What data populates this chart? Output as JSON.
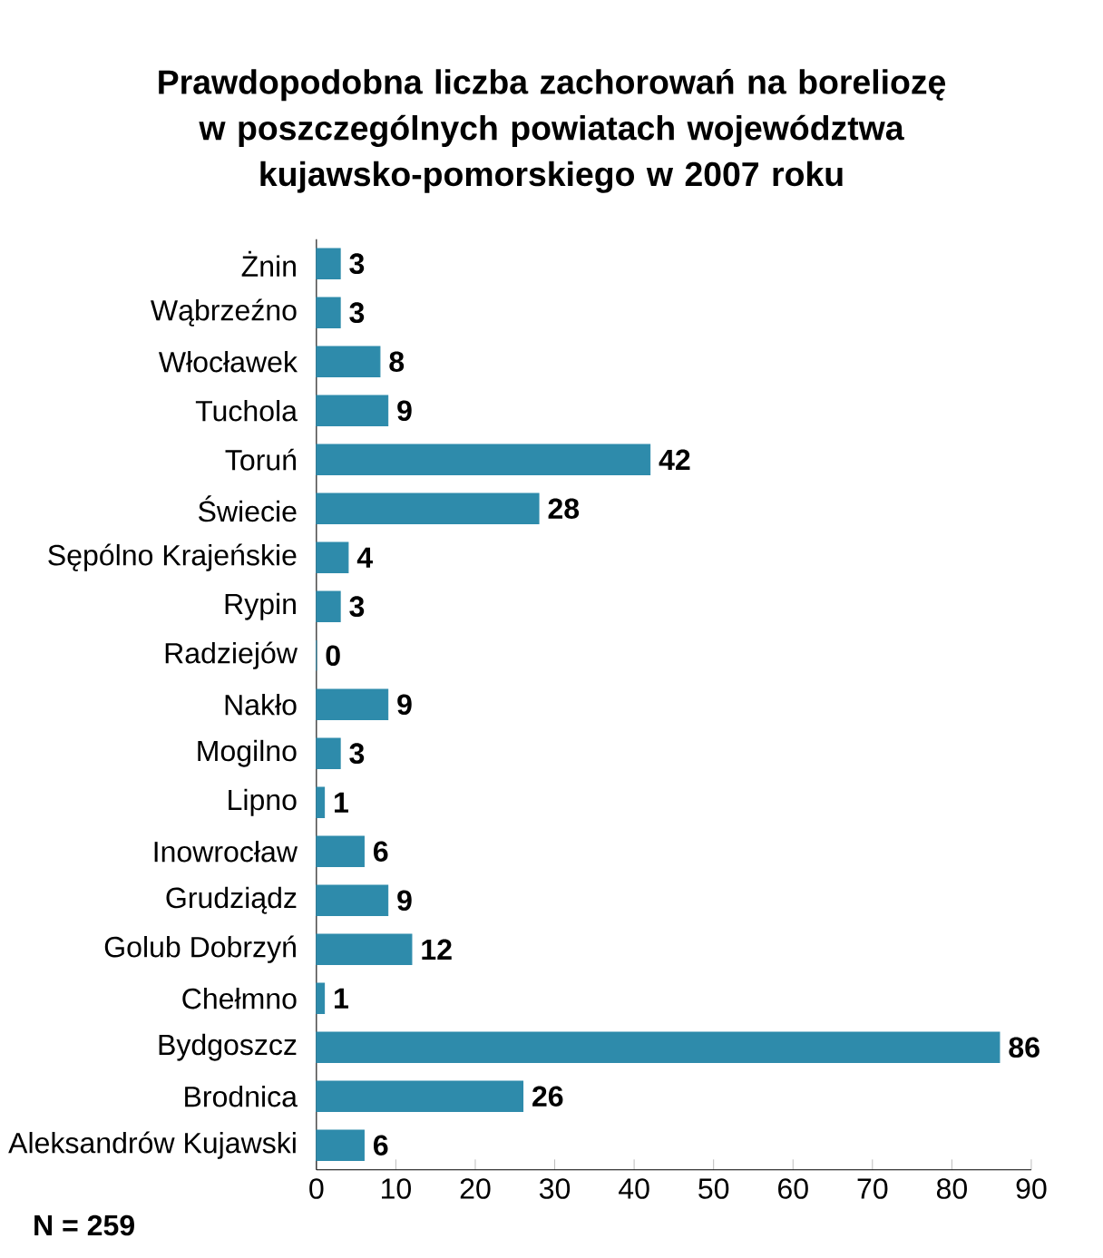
{
  "chart_data": {
    "type": "bar",
    "orientation": "horizontal",
    "title": "Prawdopodobna liczba zachorowań na boreliozę w poszczególnych powiatach województwa kujawsko-pomorskiego w 2007 roku",
    "categories": [
      "Żnin",
      "Wąbrzeźno",
      "Włocławek",
      "Tuchola",
      "Toruń",
      "Świecie",
      "Sępólno Krajeńskie",
      "Rypin",
      "Radziejów",
      "Nakło",
      "Mogilno",
      "Lipno",
      "Inowrocław",
      "Grudziądz",
      "Golub Dobrzyń",
      "Chełmno",
      "Bydgoszcz",
      "Brodnica",
      "Aleksandrów Kujawski"
    ],
    "values": [
      3,
      3,
      8,
      9,
      42,
      28,
      4,
      3,
      0,
      9,
      3,
      1,
      6,
      9,
      12,
      1,
      86,
      26,
      6
    ],
    "color": "#2e8bab",
    "xlim": [
      0,
      90
    ],
    "xticks": [
      0,
      10,
      20,
      30,
      40,
      50,
      60,
      70,
      80,
      90
    ],
    "data_labels": true,
    "grid": false,
    "annotations": [
      "N = 259"
    ]
  }
}
